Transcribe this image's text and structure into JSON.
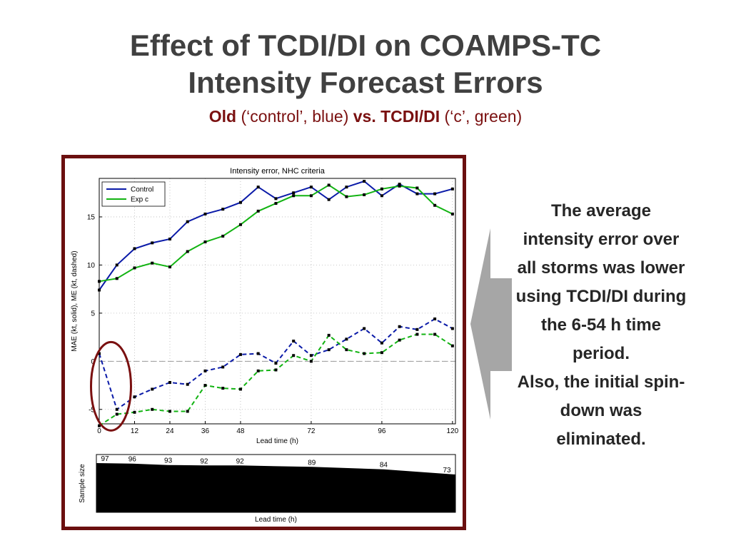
{
  "slide": {
    "title_line1": "Effect of TCDI/DI on COAMPS-TC",
    "title_line2": "Intensity Forecast Errors",
    "subtitle": {
      "part1": "Old",
      "part2": " (‘control’, blue) ",
      "part3": "vs. TCDI/DI",
      "part4": " (‘c’, green)"
    },
    "note_p1": "The average intensity error over all storms was lower using TCDI/DI during the 6-54 h time period.",
    "note_p2": "Also, the initial spin-down was eliminated."
  },
  "colors": {
    "frame": "#6b0f0f",
    "control": "#0a1aa8",
    "exp": "#12b312",
    "circle": "#7a1010",
    "arrow": "#a6a6a6",
    "title": "#404040",
    "subtitle": "#7a1010"
  },
  "chart_data": [
    {
      "type": "line",
      "title": "Intensity error, NHC criteria",
      "xlabel": "Lead time (h)",
      "ylabel": "MAE (kt, solid), ME (kt, dashed)",
      "xlim": [
        0,
        121
      ],
      "ylim": [
        -6.5,
        19
      ],
      "xticks": [
        0,
        12,
        24,
        36,
        48,
        72,
        96,
        120
      ],
      "yticks": [
        -5,
        0,
        5,
        10,
        15
      ],
      "grid": true,
      "legend": "top-left",
      "x": [
        0,
        6,
        12,
        18,
        24,
        30,
        36,
        42,
        48,
        54,
        60,
        66,
        72,
        78,
        84,
        90,
        96,
        102,
        108,
        114,
        120
      ],
      "series": [
        {
          "name": "Control",
          "style": "solid",
          "color": "#0a1aa8",
          "values": [
            7.4,
            10.0,
            11.7,
            12.3,
            12.7,
            14.5,
            15.3,
            15.8,
            16.5,
            18.1,
            16.9,
            17.5,
            18.1,
            16.8,
            18.1,
            18.7,
            17.2,
            18.4,
            17.4,
            17.4,
            17.9
          ]
        },
        {
          "name": "Exp c",
          "style": "solid",
          "color": "#12b312",
          "values": [
            8.3,
            8.6,
            9.7,
            10.2,
            9.8,
            11.4,
            12.4,
            13.0,
            14.2,
            15.6,
            16.4,
            17.2,
            17.2,
            18.3,
            17.1,
            17.3,
            17.9,
            18.2,
            18.0,
            16.2,
            15.3
          ]
        },
        {
          "name": "",
          "style": "dashed",
          "color": "#0a1aa8",
          "values": [
            0.8,
            -5.0,
            -3.7,
            -2.9,
            -2.2,
            -2.4,
            -1.0,
            -0.6,
            0.7,
            0.8,
            -0.2,
            2.1,
            0.6,
            1.2,
            2.3,
            3.4,
            1.9,
            3.6,
            3.3,
            4.4,
            3.4
          ]
        },
        {
          "name": "",
          "style": "dashed",
          "color": "#12b312",
          "values": [
            -6.7,
            -5.5,
            -5.3,
            -5.0,
            -5.2,
            -5.2,
            -2.5,
            -2.8,
            -2.9,
            -1.0,
            -0.9,
            0.6,
            0.0,
            2.7,
            1.2,
            0.8,
            0.9,
            2.2,
            2.8,
            2.8,
            1.6
          ]
        }
      ]
    },
    {
      "type": "area",
      "xlabel": "Lead time (h)",
      "ylabel": "Sample size",
      "annotations": [
        {
          "x": 0,
          "label": "97",
          "value": 97
        },
        {
          "x": 12,
          "label": "96",
          "value": 96
        },
        {
          "x": 24,
          "label": "93",
          "value": 93
        },
        {
          "x": 36,
          "label": "92",
          "value": 92
        },
        {
          "x": 48,
          "label": "92",
          "value": 92
        },
        {
          "x": 72,
          "label": "89",
          "value": 89
        },
        {
          "x": 96,
          "label": "84",
          "value": 84
        },
        {
          "x": 120,
          "label": "73",
          "value": 73
        }
      ]
    }
  ]
}
